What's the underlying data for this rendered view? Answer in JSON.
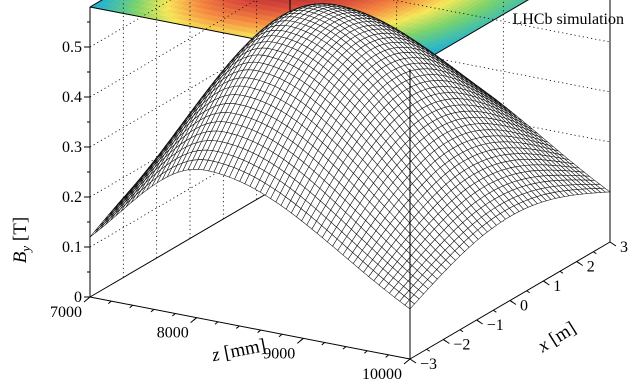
{
  "chart_data": {
    "type": "surface",
    "label": "LHCb simulation",
    "z_axis": {
      "label": "z [mm]",
      "range": [
        7000,
        10000
      ],
      "ticks": [
        "7000",
        "8000",
        "9000",
        "10000"
      ]
    },
    "x_axis": {
      "label": "x [m]",
      "range": [
        -3,
        3
      ],
      "ticks": [
        "−3",
        "−2",
        "−1",
        "0",
        "1",
        "2",
        "3"
      ]
    },
    "y_axis": {
      "label": "B_y [T]",
      "range": [
        0,
        0.58
      ],
      "ticks": [
        "0",
        "0.1",
        "0.2",
        "0.3",
        "0.4",
        "0.5"
      ]
    },
    "field_model": {
      "peak_B": 0.5,
      "peak_z": 8080,
      "sigma_z_upstream": 800,
      "sigma_z_downstream": 1300,
      "sigma_x": 2.8
    },
    "colormap": [
      "#8e1d2e",
      "#d8483a",
      "#f58d42",
      "#f6e85a",
      "#7bd36c",
      "#2bb6c9",
      "#3f84c8",
      "#3b4fa3"
    ],
    "projection": "heat map projected on top plane",
    "grid": "dotted grid on back planes"
  }
}
